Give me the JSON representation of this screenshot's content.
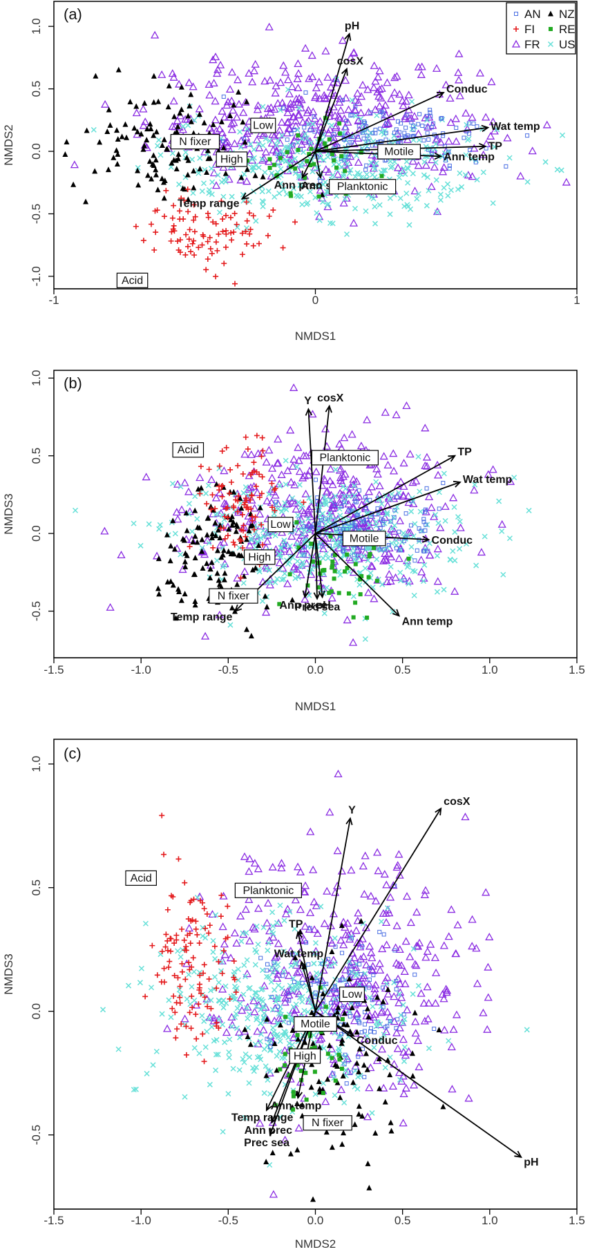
{
  "colors": {
    "AN": "#4a6fe3",
    "FI": "#e41a1c",
    "FR": "#8a2be2",
    "NZ": "#000000",
    "RE": "#22aa22",
    "US": "#66e0d8",
    "frame": "#000000",
    "vector": "#000000"
  },
  "legend": [
    {
      "key": "AN",
      "label": "AN",
      "marker": "small-square"
    },
    {
      "key": "NZ",
      "label": "NZ",
      "marker": "filled-triangle"
    },
    {
      "key": "FI",
      "label": "FI",
      "marker": "plus"
    },
    {
      "key": "RE",
      "label": "RE",
      "marker": "filled-square"
    },
    {
      "key": "FR",
      "label": "FR",
      "marker": "open-triangle"
    },
    {
      "key": "US",
      "label": "US",
      "marker": "cross"
    }
  ],
  "chart_data": [
    {
      "type": "scatter",
      "panel": "(a)",
      "xlabel": "NMDS1",
      "ylabel": "NMDS2",
      "xlim": [
        -1.0,
        1.0
      ],
      "ylim": [
        -1.1,
        1.2
      ],
      "xticks": [
        "-1",
        "0",
        "1"
      ],
      "yticks": [
        "-1.0",
        "-0.5",
        "0.0",
        "0.5",
        "1.0"
      ],
      "legend_position": "top-right",
      "vectors": [
        {
          "label": "pH",
          "x": 0.13,
          "y": 0.94
        },
        {
          "label": "cosX",
          "x": 0.12,
          "y": 0.66
        },
        {
          "label": "Conduc",
          "x": 0.49,
          "y": 0.47
        },
        {
          "label": "Wat temp",
          "x": 0.66,
          "y": 0.19
        },
        {
          "label": "TP",
          "x": 0.65,
          "y": 0.04
        },
        {
          "label": "Ann temp",
          "x": 0.48,
          "y": -0.04
        },
        {
          "label": "Ann sea",
          "x": 0.02,
          "y": -0.21
        },
        {
          "label": "Ann prec",
          "x": -0.05,
          "y": -0.21
        },
        {
          "label": "Temp range",
          "x": -0.28,
          "y": -0.38
        }
      ],
      "centroids": [
        {
          "label": "Low",
          "x": -0.2,
          "y": 0.21
        },
        {
          "label": "N fixer",
          "x": -0.46,
          "y": 0.08
        },
        {
          "label": "High",
          "x": -0.32,
          "y": -0.06
        },
        {
          "label": "Motile",
          "x": 0.32,
          "y": 0.0
        },
        {
          "label": "Planktonic",
          "x": 0.18,
          "y": -0.28
        },
        {
          "label": "Acid",
          "x": -0.7,
          "y": -1.03
        }
      ]
    },
    {
      "type": "scatter",
      "panel": "(b)",
      "xlabel": "NMDS1",
      "ylabel": "NMDS3",
      "xlim": [
        -1.5,
        1.5
      ],
      "ylim": [
        -0.8,
        1.05
      ],
      "xticks": [
        "-1.5",
        "-1.0",
        "-0.5",
        "0.0",
        "0.5",
        "1.0",
        "1.5"
      ],
      "yticks": [
        "-0.5",
        "0.0",
        "0.5",
        "1.0"
      ],
      "vectors": [
        {
          "label": "Y",
          "x": -0.04,
          "y": 0.8
        },
        {
          "label": "cosX",
          "x": 0.08,
          "y": 0.82
        },
        {
          "label": "TP",
          "x": 0.8,
          "y": 0.5
        },
        {
          "label": "Wat temp",
          "x": 0.83,
          "y": 0.33
        },
        {
          "label": "Conduc",
          "x": 0.65,
          "y": -0.04
        },
        {
          "label": "Ann temp",
          "x": 0.48,
          "y": -0.53
        },
        {
          "label": "pH",
          "x": 0.04,
          "y": -0.41
        },
        {
          "label": "Prec sea",
          "x": 0.01,
          "y": -0.42
        },
        {
          "label": "Ann prec",
          "x": -0.06,
          "y": -0.41
        },
        {
          "label": "Temp range",
          "x": -0.46,
          "y": -0.5
        }
      ],
      "centroids": [
        {
          "label": "Acid",
          "x": -0.73,
          "y": 0.54
        },
        {
          "label": "Planktonic",
          "x": 0.17,
          "y": 0.49
        },
        {
          "label": "Low",
          "x": -0.2,
          "y": 0.06
        },
        {
          "label": "Motile",
          "x": 0.28,
          "y": -0.03
        },
        {
          "label": "High",
          "x": -0.32,
          "y": -0.15
        },
        {
          "label": "N fixer",
          "x": -0.47,
          "y": -0.4
        }
      ]
    },
    {
      "type": "scatter",
      "panel": "(c)",
      "xlabel": "NMDS2",
      "ylabel": "NMDS3",
      "xlim": [
        -1.5,
        1.5
      ],
      "ylim": [
        -0.8,
        1.1
      ],
      "xticks": [
        "-1.5",
        "-1.0",
        "-0.5",
        "0.0",
        "0.5",
        "1.0",
        "1.5"
      ],
      "yticks": [
        "-0.5",
        "0.0",
        "0.5",
        "1.0"
      ],
      "vectors": [
        {
          "label": "Y",
          "x": 0.2,
          "y": 0.78
        },
        {
          "label": "cosX",
          "x": 0.72,
          "y": 0.82
        },
        {
          "label": "TP",
          "x": -0.1,
          "y": 0.32
        },
        {
          "label": "Wat temp",
          "x": -0.08,
          "y": 0.2
        },
        {
          "label": "Low",
          "x": 0.22,
          "y": 0.06
        },
        {
          "label": "Conduc",
          "x": 0.22,
          "y": -0.1
        },
        {
          "label": "pH",
          "x": 1.18,
          "y": -0.59
        },
        {
          "label": "Ann temp",
          "x": -0.1,
          "y": -0.35
        },
        {
          "label": "Temp range",
          "x": -0.28,
          "y": -0.4
        },
        {
          "label": "Ann prec",
          "x": -0.25,
          "y": -0.45
        },
        {
          "label": "Prec sea",
          "x": -0.26,
          "y": -0.5
        }
      ],
      "centroids": [
        {
          "label": "Acid",
          "x": -1.0,
          "y": 0.54
        },
        {
          "label": "Planktonic",
          "x": -0.27,
          "y": 0.49
        },
        {
          "label": "Low",
          "x": 0.21,
          "y": 0.07
        },
        {
          "label": "Motile",
          "x": 0.0,
          "y": -0.05
        },
        {
          "label": "High",
          "x": -0.06,
          "y": -0.18
        },
        {
          "label": "N fixer",
          "x": 0.07,
          "y": -0.45
        }
      ],
      "vector_only_labels": [
        "TP",
        "Wat temp",
        "Conduc",
        "pH",
        "Y",
        "cosX",
        "Ann temp",
        "Temp range",
        "Ann prec",
        "Prec sea"
      ]
    }
  ]
}
